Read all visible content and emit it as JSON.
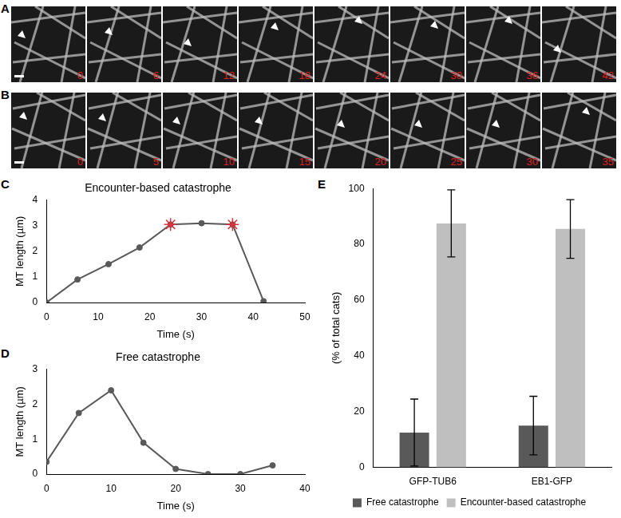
{
  "image_panels": [
    {
      "panel": "A",
      "times": [
        0,
        6,
        12,
        18,
        24,
        30,
        36,
        42
      ]
    },
    {
      "panel": "B",
      "times": [
        0,
        5,
        10,
        15,
        20,
        25,
        30,
        35
      ]
    }
  ],
  "chart_data": [
    {
      "panel": "C",
      "type": "line",
      "title": "Encounter-based catastrophe",
      "xlabel": "Time (s)",
      "ylabel": "MT length (µm)",
      "x": [
        0,
        6,
        12,
        18,
        24,
        30,
        36,
        42
      ],
      "series": [
        {
          "color": "#595959",
          "marker": "circle",
          "line_style": "solid",
          "values": [
            0,
            0.9,
            1.5,
            2.15,
            3.05,
            3.1,
            3.05,
            0.05
          ]
        },
        {
          "color": "#e0303a",
          "marker": "star",
          "line_style": "none",
          "values": [
            null,
            null,
            null,
            null,
            3.05,
            null,
            3.05,
            null
          ]
        }
      ],
      "xlim": [
        0,
        50
      ],
      "xticks": [
        0,
        10,
        20,
        30,
        40,
        50
      ],
      "ylim": [
        0,
        4
      ],
      "yticks": [
        0,
        1,
        2,
        3,
        4
      ],
      "grid": false
    },
    {
      "panel": "D",
      "type": "line",
      "title": "Free catastrophe",
      "xlabel": "Time (s)",
      "ylabel": "MT length (µm)",
      "x": [
        0,
        5,
        10,
        15,
        20,
        25,
        30,
        35
      ],
      "series": [
        {
          "color": "#595959",
          "marker": "circle",
          "line_style": "solid",
          "values": [
            0.35,
            1.75,
            2.4,
            0.9,
            0.15,
            0,
            0,
            0.25
          ]
        }
      ],
      "xlim": [
        0,
        40
      ],
      "xticks": [
        0,
        10,
        20,
        30,
        40
      ],
      "ylim": [
        0,
        3
      ],
      "yticks": [
        0,
        1,
        2,
        3
      ],
      "grid": false
    },
    {
      "panel": "E",
      "type": "bar",
      "ylabel": "(% of total cats)",
      "categories": [
        "GFP-TUB6",
        "EB1-GFP"
      ],
      "series": [
        {
          "name": "Free catastrophe",
          "color": "#595959",
          "values": [
            12.5,
            15
          ],
          "errors": [
            12,
            10.5
          ]
        },
        {
          "name": "Encounter-based catastrophe",
          "color": "#bfbfbf",
          "values": [
            87.5,
            85.5
          ],
          "errors": [
            12,
            10.5
          ]
        }
      ],
      "ylim": [
        0,
        100
      ],
      "yticks": [
        0,
        20,
        40,
        60,
        80,
        100
      ],
      "grid": false,
      "legend": "bottom"
    }
  ]
}
